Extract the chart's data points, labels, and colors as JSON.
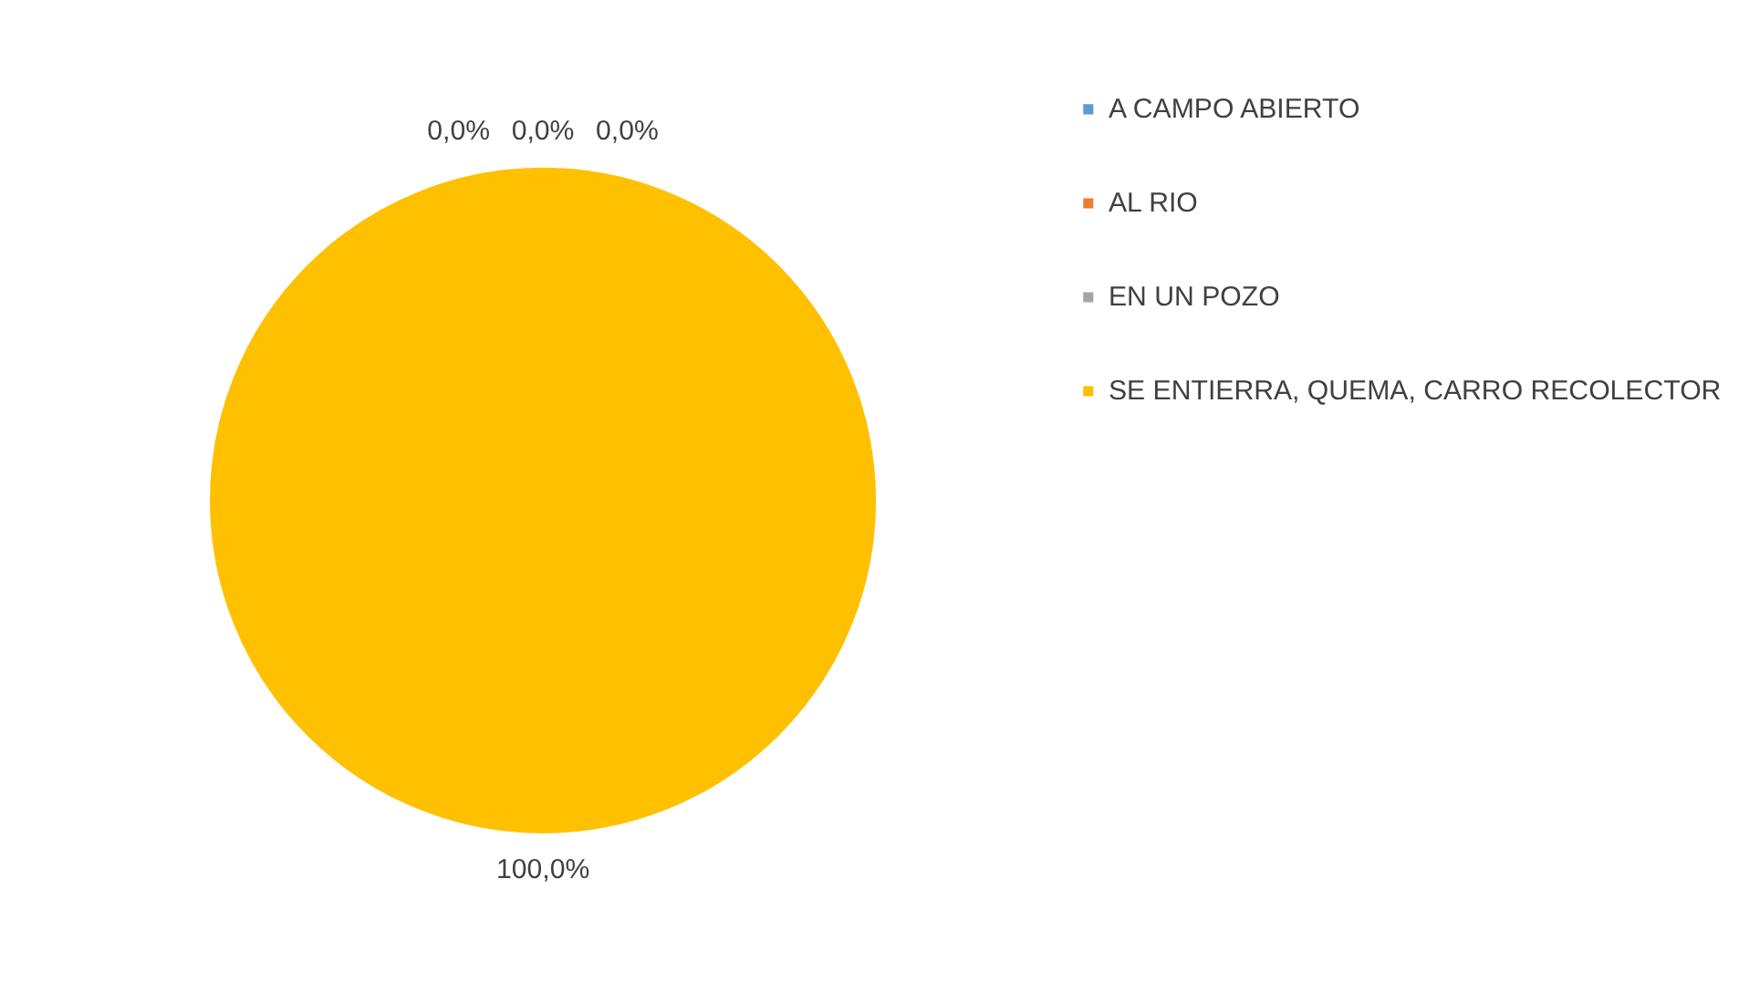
{
  "chart_data": {
    "type": "pie",
    "categories": [
      "A CAMPO ABIERTO",
      "AL RIO",
      "EN UN POZO",
      "SE ENTIERRA, QUEMA, CARRO RECOLECTOR"
    ],
    "values": [
      0,
      0,
      0,
      100
    ],
    "value_labels": [
      "0,0%",
      "0,0%",
      "0,0%",
      "100,0%"
    ],
    "colors": [
      "#5b9bd5",
      "#ed7d31",
      "#a5a5a5",
      "#ffc000"
    ],
    "legend": "right"
  }
}
